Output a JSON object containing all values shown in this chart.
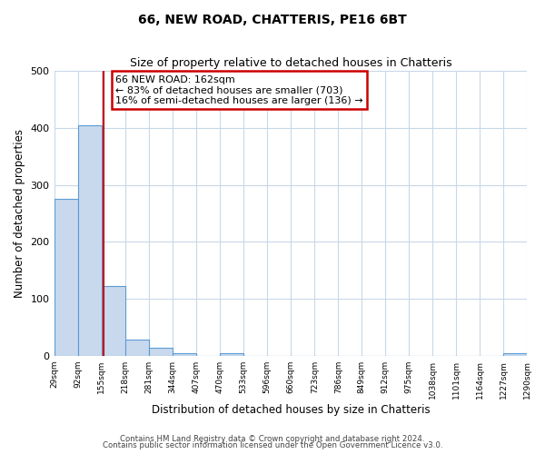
{
  "title": "66, NEW ROAD, CHATTERIS, PE16 6BT",
  "subtitle": "Size of property relative to detached houses in Chatteris",
  "xlabel": "Distribution of detached houses by size in Chatteris",
  "ylabel": "Number of detached properties",
  "bar_edges": [
    29,
    92,
    155,
    218,
    281,
    344,
    407,
    470,
    533,
    596,
    660,
    723,
    786,
    849,
    912,
    975,
    1038,
    1101,
    1164,
    1227,
    1290
  ],
  "bar_heights": [
    275,
    405,
    122,
    29,
    15,
    5,
    0,
    5,
    0,
    0,
    0,
    0,
    0,
    0,
    0,
    0,
    0,
    0,
    0,
    5
  ],
  "bar_color": "#c9d9ed",
  "bar_edge_color": "#5b9bd5",
  "vline_x": 162,
  "vline_color": "#cc0000",
  "annotation_title": "66 NEW ROAD: 162sqm",
  "annotation_line1": "← 83% of detached houses are smaller (703)",
  "annotation_line2": "16% of semi-detached houses are larger (136) →",
  "annotation_box_color": "#ffffff",
  "annotation_box_edge": "#cc0000",
  "ylim": [
    0,
    500
  ],
  "tick_labels": [
    "29sqm",
    "92sqm",
    "155sqm",
    "218sqm",
    "281sqm",
    "344sqm",
    "407sqm",
    "470sqm",
    "533sqm",
    "596sqm",
    "660sqm",
    "723sqm",
    "786sqm",
    "849sqm",
    "912sqm",
    "975sqm",
    "1038sqm",
    "1101sqm",
    "1164sqm",
    "1227sqm",
    "1290sqm"
  ],
  "footer1": "Contains HM Land Registry data © Crown copyright and database right 2024.",
  "footer2": "Contains public sector information licensed under the Open Government Licence v3.0.",
  "bg_color": "#ffffff",
  "grid_color": "#c8d8e8"
}
